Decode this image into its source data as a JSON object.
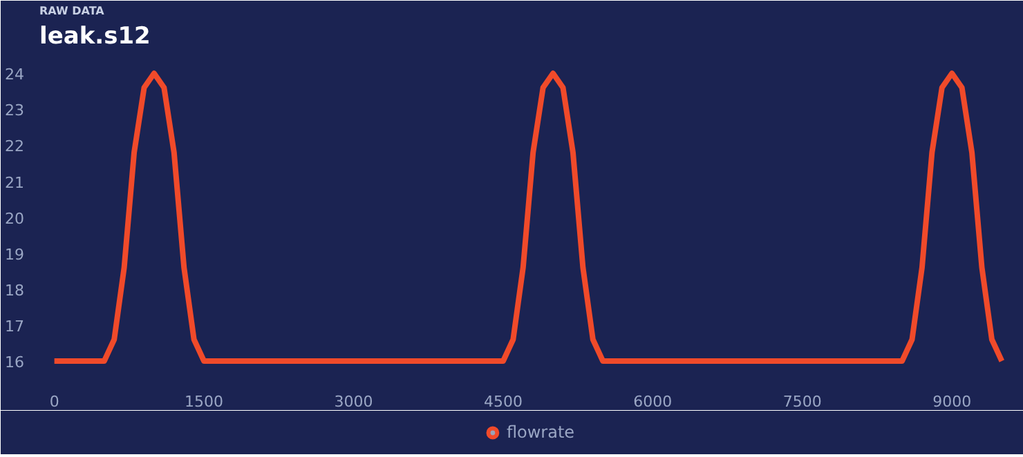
{
  "chart_data": {
    "type": "line",
    "title": "leak.s12",
    "subtitle": "RAW DATA",
    "x": [
      0,
      500,
      600,
      700,
      800,
      900,
      1000,
      1100,
      1200,
      1300,
      1400,
      1500,
      4500,
      4600,
      4700,
      4800,
      4900,
      5000,
      5100,
      5200,
      5300,
      5400,
      5500,
      8500,
      8600,
      8700,
      8800,
      8900,
      9000,
      9100,
      9200,
      9300,
      9400,
      9500
    ],
    "series": [
      {
        "name": "flowrate",
        "color": "#f04a2a",
        "values": [
          16,
          16,
          16.6,
          18.6,
          21.8,
          23.6,
          24,
          23.6,
          21.8,
          18.6,
          16.6,
          16,
          16,
          16.6,
          18.6,
          21.8,
          23.6,
          24,
          23.6,
          21.8,
          18.6,
          16.6,
          16,
          16,
          16.6,
          18.6,
          21.8,
          23.6,
          24,
          23.6,
          21.8,
          18.6,
          16.6,
          16
        ]
      }
    ],
    "xlim": [
      -150,
      9650
    ],
    "ylim": [
      15.5,
      24.6
    ],
    "xticks": [
      0,
      1500,
      3000,
      4500,
      6000,
      7500,
      9000
    ],
    "yticks": [
      16,
      17,
      18,
      19,
      20,
      21,
      22,
      23,
      24
    ],
    "grid": false,
    "legend": "bottom",
    "marker": "none",
    "line_style": "solid"
  }
}
